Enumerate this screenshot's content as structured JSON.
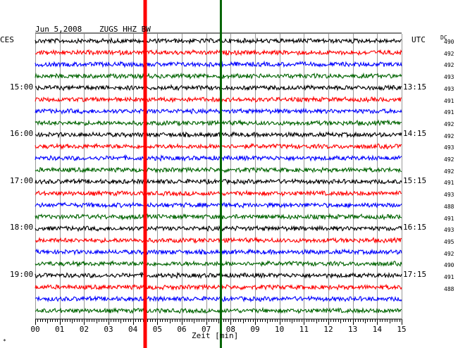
{
  "header": {
    "date": "Jun 5,2008",
    "station": "ZUGS HHZ BW",
    "left_tz": "CES",
    "right_tz": "UTC",
    "dc_label": "DC"
  },
  "chart_data": {
    "type": "line",
    "title": "Jun 5,2008   ZUGS HHZ BW",
    "xlabel": "Zeit [min]",
    "xlim": [
      0,
      15
    ],
    "x_ticks": [
      "00",
      "01",
      "02",
      "03",
      "04",
      "05",
      "06",
      "07",
      "08",
      "09",
      "10",
      "11",
      "12",
      "13",
      "14",
      "15"
    ],
    "grid": true,
    "trace_count": 24,
    "trace_colors": [
      "#000000",
      "#ff0000",
      "#0000ff",
      "#006400"
    ],
    "left_hour_labels": [
      "15:00",
      "16:00",
      "17:00",
      "18:00",
      "19:00"
    ],
    "right_utc_labels": [
      "13:15",
      "14:15",
      "15:15",
      "16:15",
      "17:15"
    ],
    "label_trace_index": [
      4,
      8,
      12,
      16,
      20
    ],
    "dc_offsets": [
      "490",
      "492",
      "492",
      "493",
      "493",
      "491",
      "491",
      "492",
      "492",
      "493",
      "492",
      "492",
      "491",
      "493",
      "488",
      "491",
      "493",
      "495",
      "492",
      "490",
      "491",
      "488"
    ],
    "event_markers": [
      {
        "minute": 4.5,
        "color": "#ff0000"
      },
      {
        "minute": 7.6,
        "color": "#006400"
      }
    ]
  },
  "footer": {
    "corner_mark": "*"
  }
}
